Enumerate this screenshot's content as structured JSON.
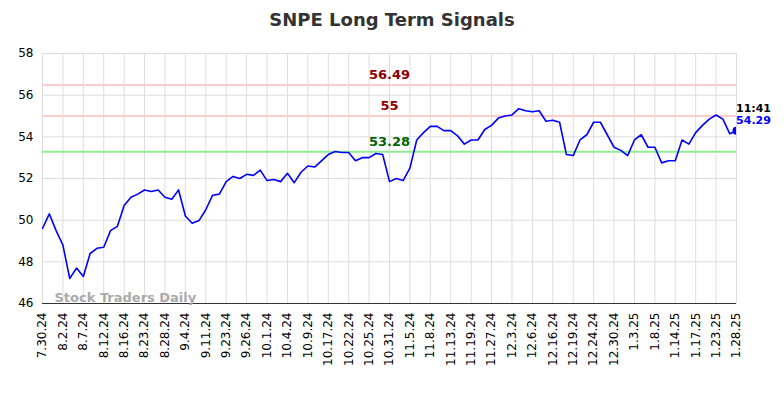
{
  "chart_data": {
    "type": "line",
    "title": "SNPE Long Term Signals",
    "color": "#0000ff",
    "grid": true,
    "ylim": [
      46,
      58
    ],
    "yticks": [
      46,
      48,
      50,
      52,
      54,
      56,
      58
    ],
    "categories": [
      "7.30.24",
      null,
      null,
      "8.2.24",
      null,
      null,
      "8.7.24",
      null,
      null,
      "8.12.24",
      null,
      null,
      "8.16.24",
      null,
      null,
      "8.23.24",
      null,
      null,
      "8.28.24",
      null,
      null,
      "9.4.24",
      null,
      null,
      "9.11.24",
      null,
      null,
      "9.23.24",
      null,
      null,
      "9.26.24",
      null,
      null,
      "10.1.24",
      null,
      null,
      "10.4.24",
      null,
      null,
      "10.9.24",
      null,
      null,
      "10.17.24",
      null,
      null,
      "10.22.24",
      null,
      null,
      "10.25.24",
      null,
      null,
      "10.31.24",
      null,
      null,
      "11.5.24",
      null,
      null,
      "11.8.24",
      null,
      null,
      "11.13.24",
      null,
      null,
      "11.19.24",
      null,
      null,
      "11.27.24",
      null,
      null,
      "12.3.24",
      null,
      null,
      "12.6.24",
      null,
      null,
      "12.16.24",
      null,
      null,
      "12.19.24",
      null,
      null,
      "12.24.24",
      null,
      null,
      "12.30.24",
      null,
      null,
      "1.3.25",
      null,
      null,
      "1.8.25",
      null,
      null,
      "1.14.25",
      null,
      null,
      "1.17.25",
      null,
      null,
      "1.23.25",
      null,
      null,
      "1.28.25"
    ],
    "values": [
      49.6,
      50.3,
      49.5,
      48.8,
      47.2,
      47.7,
      47.3,
      48.4,
      48.65,
      48.7,
      49.5,
      49.7,
      50.7,
      51.1,
      51.25,
      51.45,
      51.38,
      51.45,
      51.1,
      51.0,
      51.45,
      50.2,
      49.85,
      49.98,
      50.5,
      51.2,
      51.25,
      51.85,
      52.1,
      52.0,
      52.2,
      52.15,
      52.4,
      51.9,
      51.95,
      51.85,
      52.25,
      51.8,
      52.3,
      52.6,
      52.55,
      52.85,
      53.15,
      53.3,
      53.25,
      53.25,
      52.85,
      53.0,
      53.0,
      53.2,
      53.15,
      51.85,
      52.0,
      51.9,
      52.5,
      53.85,
      54.2,
      54.5,
      54.5,
      54.3,
      54.3,
      54.05,
      53.65,
      53.85,
      53.85,
      54.35,
      54.55,
      54.9,
      55.0,
      55.05,
      55.35,
      55.25,
      55.2,
      55.25,
      54.75,
      54.8,
      54.7,
      53.15,
      53.1,
      53.85,
      54.1,
      54.7,
      54.7,
      54.1,
      53.5,
      53.35,
      53.1,
      53.85,
      54.1,
      53.5,
      53.5,
      52.75,
      52.85,
      52.85,
      53.85,
      53.65,
      54.2,
      54.55,
      54.85,
      55.05,
      54.85,
      54.15,
      54.29
    ],
    "reference_lines": [
      {
        "value": 56.49,
        "color": "#ffcccc",
        "text_color": "#8b0000"
      },
      {
        "value": 55,
        "color": "#ffcccc",
        "text_color": "#8b0000"
      },
      {
        "value": 53.28,
        "color": "#90ee90",
        "text_color": "#006400"
      }
    ],
    "last_point_time": "11:41",
    "watermark": "Stock Traders Daily"
  }
}
